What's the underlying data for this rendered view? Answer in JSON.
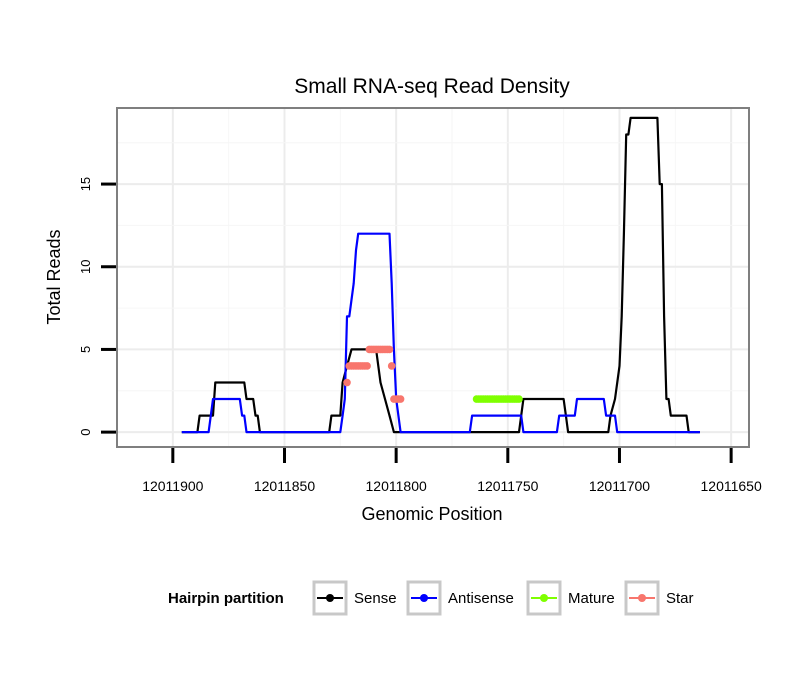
{
  "chart_data": {
    "type": "line",
    "title": "Small RNA-seq Read Density",
    "xlabel": "Genomic Position",
    "ylabel": "Total Reads",
    "x_reversed": true,
    "xlim": [
      11.95,
      11.7
    ],
    "xlim_base": 12011600,
    "x_ticks": [
      {
        "value": 300,
        "label": "12011900"
      },
      {
        "value": 250,
        "label": "12011850"
      },
      {
        "value": 200,
        "label": "12011800"
      },
      {
        "value": 150,
        "label": "12011750"
      },
      {
        "value": 100,
        "label": "12011700"
      },
      {
        "value": 50,
        "label": "12011650"
      }
    ],
    "ylim": [
      -0.9,
      19.6
    ],
    "y_ticks": [
      {
        "value": 0,
        "label": "0"
      },
      {
        "value": 5,
        "label": "5"
      },
      {
        "value": 10,
        "label": "10"
      },
      {
        "value": 15,
        "label": "15"
      }
    ],
    "grid": true,
    "legend": {
      "title": "Hairpin partition",
      "position": "bottom",
      "entries": [
        "Sense",
        "Antisense",
        "Mature",
        "Star"
      ]
    },
    "series": [
      {
        "name": "Sense",
        "color": "#000000",
        "marker": false,
        "points": [
          [
            296,
            0
          ],
          [
            289,
            0
          ],
          [
            288,
            1
          ],
          [
            282,
            1
          ],
          [
            281,
            3
          ],
          [
            268,
            3
          ],
          [
            267,
            2
          ],
          [
            264,
            2
          ],
          [
            263,
            1
          ],
          [
            262,
            1
          ],
          [
            261,
            0
          ],
          [
            230,
            0
          ],
          [
            229,
            1
          ],
          [
            225,
            1
          ],
          [
            224,
            3
          ],
          [
            222,
            4
          ],
          [
            220,
            5
          ],
          [
            209,
            5
          ],
          [
            208,
            4
          ],
          [
            207,
            3
          ],
          [
            205,
            2
          ],
          [
            203,
            1
          ],
          [
            201,
            0
          ],
          [
            175,
            0
          ],
          [
            172,
            0
          ],
          [
            145,
            0
          ],
          [
            144,
            1
          ],
          [
            143,
            2
          ],
          [
            125,
            2
          ],
          [
            124,
            1
          ],
          [
            123,
            0
          ],
          [
            105,
            0
          ],
          [
            104,
            1
          ],
          [
            102,
            2
          ],
          [
            100,
            4
          ],
          [
            99,
            7
          ],
          [
            98,
            12
          ],
          [
            97,
            18
          ],
          [
            96,
            18
          ],
          [
            95,
            19
          ],
          [
            83,
            19
          ],
          [
            82,
            15
          ],
          [
            81,
            15
          ],
          [
            80,
            7
          ],
          [
            79,
            2
          ],
          [
            78,
            2
          ],
          [
            77,
            1
          ],
          [
            70,
            1
          ],
          [
            69,
            0
          ],
          [
            64,
            0
          ]
        ]
      },
      {
        "name": "Antisense",
        "color": "#0000ff",
        "marker": false,
        "points": [
          [
            296,
            0
          ],
          [
            284,
            0
          ],
          [
            283,
            1
          ],
          [
            282,
            2
          ],
          [
            270,
            2
          ],
          [
            269,
            1
          ],
          [
            268,
            1
          ],
          [
            267,
            0
          ],
          [
            225,
            0
          ],
          [
            224,
            1
          ],
          [
            223,
            2
          ],
          [
            222,
            7
          ],
          [
            221,
            7
          ],
          [
            220,
            8
          ],
          [
            219,
            9
          ],
          [
            218,
            11
          ],
          [
            217,
            12
          ],
          [
            203,
            12
          ],
          [
            202,
            9
          ],
          [
            201,
            5
          ],
          [
            200,
            2
          ],
          [
            199,
            1
          ],
          [
            198,
            0
          ],
          [
            167,
            0
          ],
          [
            166,
            1
          ],
          [
            144,
            1
          ],
          [
            143,
            0
          ],
          [
            128,
            0
          ],
          [
            127,
            1
          ],
          [
            120,
            1
          ],
          [
            119,
            2
          ],
          [
            107,
            2
          ],
          [
            106,
            1
          ],
          [
            102,
            1
          ],
          [
            101,
            0
          ],
          [
            64,
            0
          ]
        ]
      },
      {
        "name": "Mature",
        "color": "#7fff00",
        "marker": true,
        "points": [
          [
            164,
            2
          ],
          [
            163,
            2
          ],
          [
            162,
            2
          ],
          [
            161,
            2
          ],
          [
            160,
            2
          ],
          [
            159,
            2
          ],
          [
            158,
            2
          ],
          [
            157,
            2
          ],
          [
            156,
            2
          ],
          [
            155,
            2
          ],
          [
            154,
            2
          ],
          [
            153,
            2
          ],
          [
            152,
            2
          ],
          [
            151,
            2
          ],
          [
            150,
            2
          ],
          [
            149,
            2
          ],
          [
            148,
            2
          ],
          [
            147,
            2
          ],
          [
            146,
            2
          ],
          [
            145,
            2
          ]
        ]
      },
      {
        "name": "Star",
        "color": "#f8766d",
        "marker": true,
        "points": [
          [
            222,
            3
          ],
          [
            221,
            4
          ],
          [
            220,
            4
          ],
          [
            219,
            4
          ],
          [
            218,
            4
          ],
          [
            217,
            4
          ],
          [
            216,
            4
          ],
          [
            215,
            4
          ],
          [
            214,
            4
          ],
          [
            213,
            4
          ],
          [
            212,
            5
          ],
          [
            211,
            5
          ],
          [
            210,
            5
          ],
          [
            209,
            5
          ],
          [
            208,
            5
          ],
          [
            207,
            5
          ],
          [
            206,
            5
          ],
          [
            205,
            5
          ],
          [
            204,
            5
          ],
          [
            203,
            5
          ],
          [
            202,
            4
          ],
          [
            201,
            2
          ],
          [
            200,
            2
          ],
          [
            199,
            2
          ],
          [
            198,
            2
          ]
        ]
      }
    ]
  }
}
